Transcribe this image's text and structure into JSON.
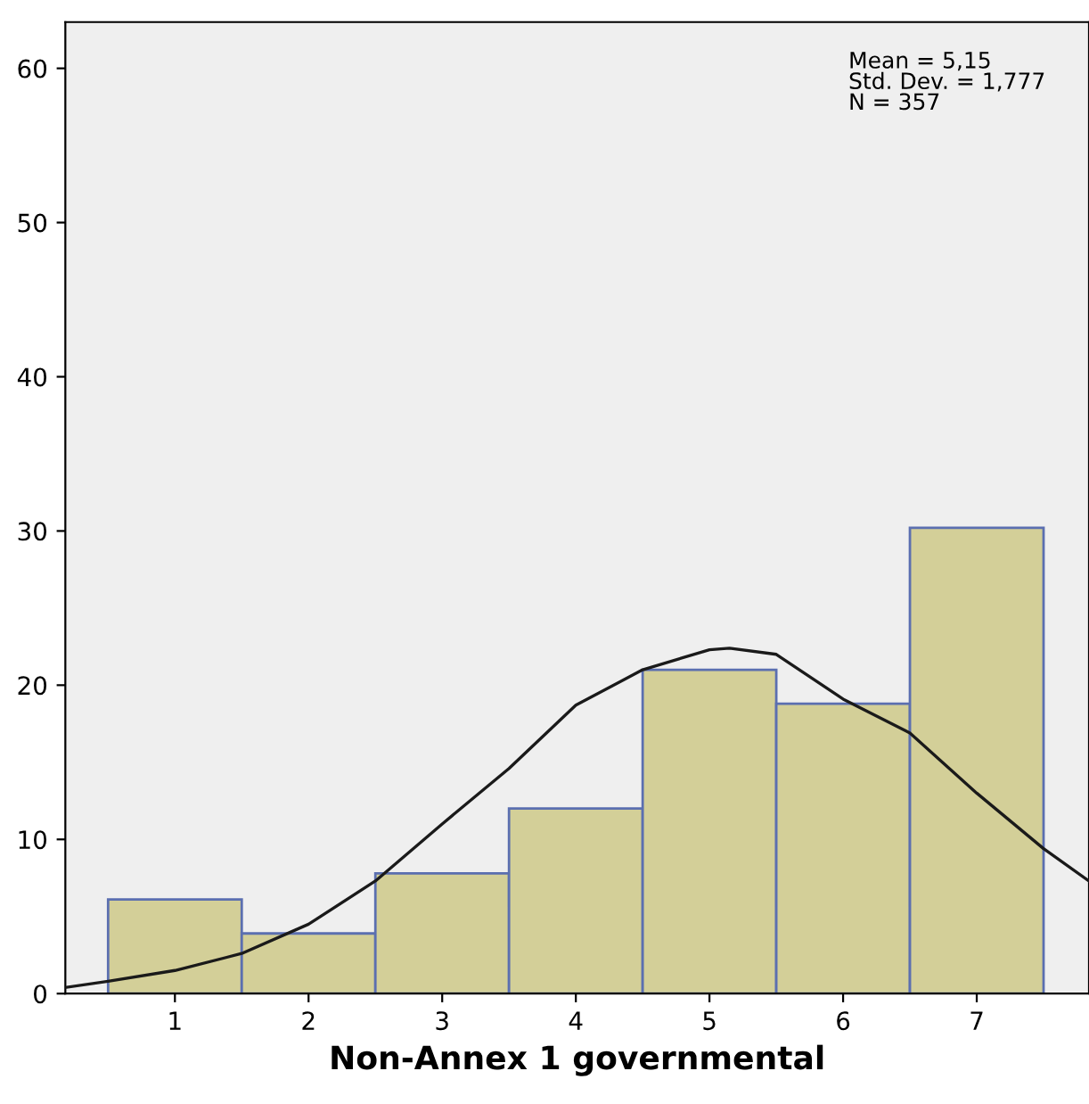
{
  "chart_data": {
    "type": "histogram",
    "xlabel": "Non-Annex 1 governmental",
    "bins": [
      0.5,
      1.5,
      2.5,
      3.5,
      4.5,
      5.5,
      6.5,
      7.5
    ],
    "values": [
      6.1,
      3.9,
      7.8,
      12,
      21,
      18.8,
      30.2
    ],
    "color": "#d3cf98",
    "series": [
      {
        "type": "line",
        "color": "#1a1a1a",
        "x": [
          0.18,
          0.5,
          1,
          1.5,
          2,
          2.5,
          3,
          3.5,
          4,
          4.5,
          5,
          5.15,
          5.5,
          6,
          6.5,
          7,
          7.5,
          7.84
        ],
        "values": [
          0.4,
          0.8,
          1.5,
          2.6,
          4.5,
          7.3,
          11,
          14.6,
          18.7,
          21,
          22.3,
          22.4,
          22,
          19.1,
          16.9,
          13,
          9.4,
          7.3
        ]
      }
    ],
    "xlim": [
      0.18,
      7.84
    ],
    "xticks": [
      1,
      2,
      3,
      4,
      5,
      6,
      7
    ],
    "ylim": [
      0,
      63
    ],
    "yticks": [
      0,
      10,
      20,
      30,
      40,
      50,
      60
    ],
    "annotations": [
      "Mean = 5,15\nStd. Dev. = 1,777\nN = 357"
    ],
    "grid": false
  }
}
